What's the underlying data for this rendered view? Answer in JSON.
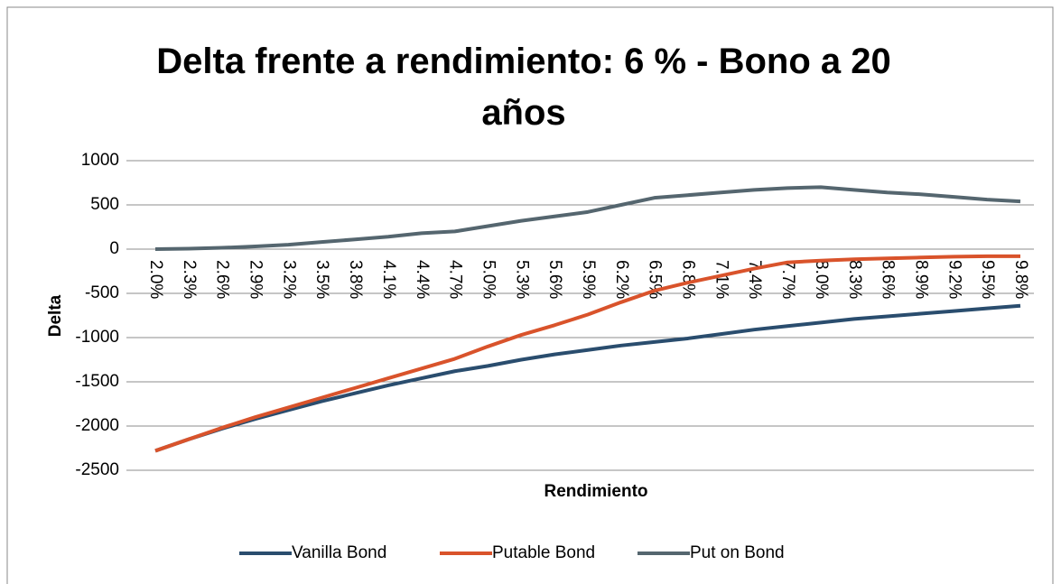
{
  "chart_data": {
    "type": "line",
    "title": "Delta frente a rendimiento: 6 % - Bono a 20 años",
    "x_label": "Rendimiento",
    "y_label": "Delta",
    "categories": [
      "2.0%",
      "2.3%",
      "2.6%",
      "2.9%",
      "3.2%",
      "3.5%",
      "3.8%",
      "4.1%",
      "4.4%",
      "4.7%",
      "5.0%",
      "5.3%",
      "5.6%",
      "5.9%",
      "6.2%",
      "6.5%",
      "6.8%",
      "7.1%",
      "7.4%",
      "7.7%",
      "8.0%",
      "8.3%",
      "8.6%",
      "8.9%",
      "9.2%",
      "9.5%",
      "9.8%"
    ],
    "series": [
      {
        "name": "Vanilla Bond",
        "color": "#2a4d6e",
        "values": [
          -2280,
          -2150,
          -2030,
          -1920,
          -1820,
          -1720,
          -1630,
          -1540,
          -1460,
          -1380,
          -1320,
          -1250,
          -1190,
          -1140,
          -1090,
          -1050,
          -1010,
          -960,
          -910,
          -870,
          -830,
          -790,
          -760,
          -730,
          -700,
          -670,
          -640
        ]
      },
      {
        "name": "Putable Bond",
        "color": "#d9532b",
        "values": [
          -2280,
          -2150,
          -2020,
          -1900,
          -1790,
          -1680,
          -1570,
          -1460,
          -1350,
          -1240,
          -1100,
          -970,
          -860,
          -740,
          -600,
          -470,
          -380,
          -300,
          -220,
          -150,
          -130,
          -115,
          -105,
          -95,
          -85,
          -80,
          -80
        ]
      },
      {
        "name": "Put on Bond",
        "color": "#55666f",
        "values": [
          0,
          5,
          15,
          30,
          50,
          80,
          110,
          140,
          180,
          200,
          260,
          320,
          370,
          420,
          500,
          580,
          610,
          640,
          670,
          690,
          700,
          670,
          640,
          620,
          590,
          560,
          540
        ]
      }
    ],
    "ylim": [
      -2500,
      1000
    ],
    "yticks": [
      -2500,
      -2000,
      -1500,
      -1000,
      -500,
      0,
      500,
      1000
    ],
    "grid": true,
    "legend": "bottom"
  }
}
